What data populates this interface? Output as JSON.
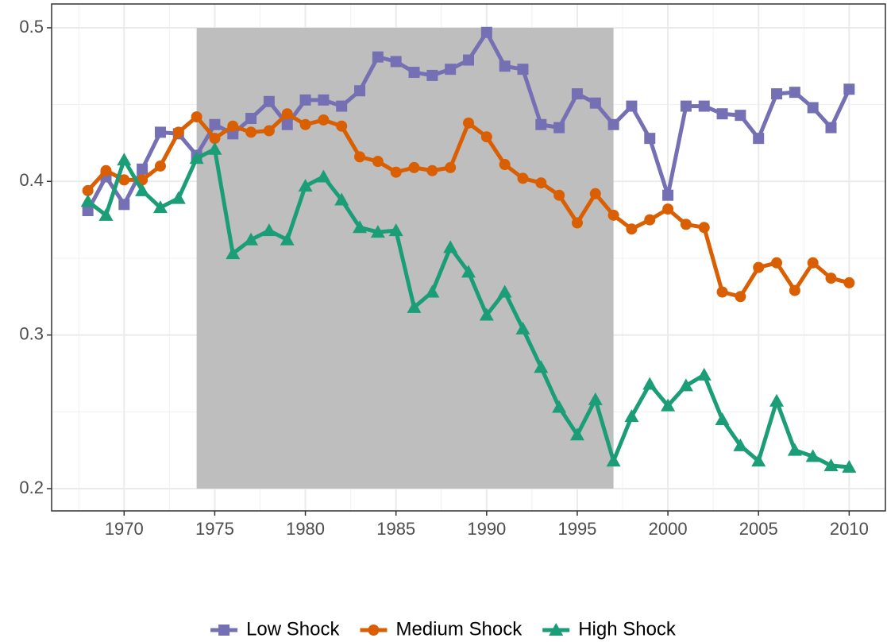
{
  "chart_data": {
    "type": "line",
    "x": [
      1968,
      1969,
      1970,
      1971,
      1972,
      1973,
      1974,
      1975,
      1976,
      1977,
      1978,
      1979,
      1980,
      1981,
      1982,
      1983,
      1984,
      1985,
      1986,
      1987,
      1988,
      1989,
      1990,
      1991,
      1992,
      1993,
      1994,
      1995,
      1996,
      1997,
      1998,
      1999,
      2000,
      2001,
      2002,
      2003,
      2004,
      2005,
      2006,
      2007,
      2008,
      2009,
      2010
    ],
    "series": [
      {
        "name": "Low Shock",
        "color": "#7570b3",
        "marker": "square",
        "values": [
          0.381,
          0.403,
          0.385,
          0.408,
          0.432,
          0.431,
          0.417,
          0.437,
          0.431,
          0.441,
          0.452,
          0.437,
          0.453,
          0.453,
          0.449,
          0.459,
          0.481,
          0.478,
          0.471,
          0.469,
          0.473,
          0.479,
          0.497,
          0.475,
          0.473,
          0.437,
          0.435,
          0.457,
          0.451,
          0.437,
          0.449,
          0.428,
          0.391,
          0.449,
          0.449,
          0.444,
          0.443,
          0.428,
          0.457,
          0.458,
          0.448,
          0.435,
          0.46
        ]
      },
      {
        "name": "Medium Shock",
        "color": "#d95f02",
        "marker": "circle",
        "values": [
          0.394,
          0.407,
          0.401,
          0.401,
          0.41,
          0.432,
          0.442,
          0.428,
          0.436,
          0.432,
          0.433,
          0.444,
          0.437,
          0.44,
          0.436,
          0.416,
          0.413,
          0.406,
          0.409,
          0.407,
          0.409,
          0.438,
          0.429,
          0.411,
          0.402,
          0.399,
          0.391,
          0.373,
          0.392,
          0.378,
          0.369,
          0.375,
          0.382,
          0.372,
          0.37,
          0.328,
          0.325,
          0.344,
          0.347,
          0.329,
          0.347,
          0.337,
          0.334
        ]
      },
      {
        "name": "High Shock",
        "color": "#1b9e77",
        "marker": "triangle",
        "values": [
          0.387,
          0.378,
          0.414,
          0.394,
          0.383,
          0.389,
          0.415,
          0.421,
          0.353,
          0.362,
          0.368,
          0.362,
          0.397,
          0.403,
          0.388,
          0.37,
          0.367,
          0.368,
          0.318,
          0.328,
          0.357,
          0.341,
          0.313,
          0.328,
          0.304,
          0.279,
          0.253,
          0.235,
          0.258,
          0.218,
          0.247,
          0.268,
          0.254,
          0.267,
          0.274,
          0.245,
          0.228,
          0.218,
          0.257,
          0.225,
          0.221,
          0.215,
          0.214
        ]
      }
    ],
    "shaded_region": {
      "x": [
        1974,
        1997
      ],
      "y": [
        0.2,
        0.5
      ],
      "color": "#bebebe"
    },
    "xlim": [
      1966,
      2012
    ],
    "ylim": [
      0.1855,
      0.5155
    ],
    "xticks": [
      1970,
      1975,
      1980,
      1985,
      1990,
      1995,
      2000,
      2005,
      2010
    ],
    "yticks": [
      0.2,
      0.3,
      0.4,
      0.5
    ],
    "grid": true,
    "minor_grid": true,
    "legend": "bottom"
  }
}
